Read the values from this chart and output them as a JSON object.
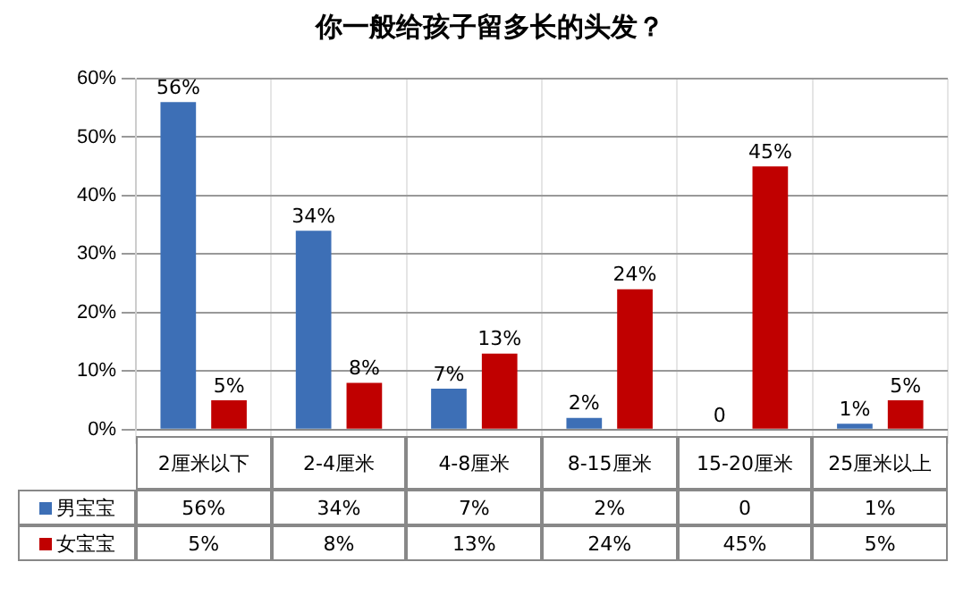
{
  "chart_data": {
    "type": "bar",
    "title": "你一般给孩子留多长的头发？",
    "categories": [
      "2厘米以下",
      "2-4厘米",
      "4-8厘米",
      "8-15厘米",
      "15-20厘米",
      "25厘米以上"
    ],
    "series": [
      {
        "name": "男宝宝",
        "color": "#3d6fb6",
        "values": [
          56,
          34,
          7,
          2,
          0,
          1
        ],
        "value_labels": [
          "56%",
          "34%",
          "7%",
          "2%",
          "0",
          "1%"
        ]
      },
      {
        "name": "女宝宝",
        "color": "#c00000",
        "values": [
          5,
          8,
          13,
          24,
          45,
          5
        ],
        "value_labels": [
          "5%",
          "8%",
          "13%",
          "24%",
          "45%",
          "5%"
        ]
      }
    ],
    "ylim": [
      0,
      60
    ],
    "yticks": [
      {
        "value": 0,
        "label": "0%"
      },
      {
        "value": 10,
        "label": "10%"
      },
      {
        "value": 20,
        "label": "20%"
      },
      {
        "value": 30,
        "label": "30%"
      },
      {
        "value": 40,
        "label": "40%"
      },
      {
        "value": 50,
        "label": "50%"
      },
      {
        "value": 60,
        "label": "60%"
      }
    ],
    "grid": true,
    "legend": "bottom"
  }
}
